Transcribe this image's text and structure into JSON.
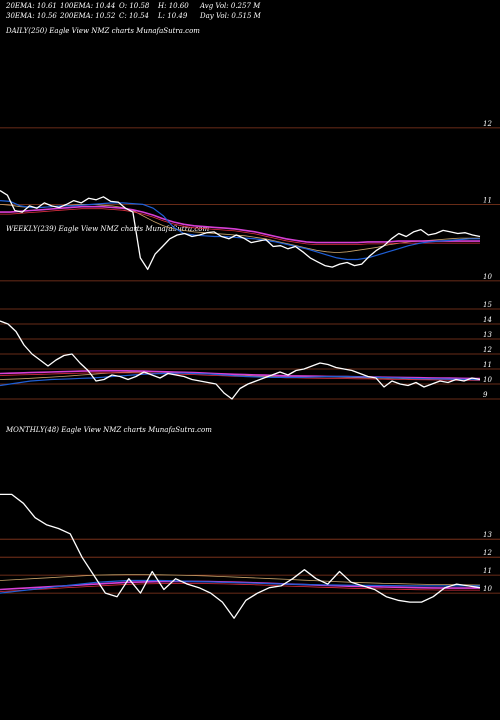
{
  "header": {
    "col1": [
      "20EMA: 10.61",
      "30EMA: 10.56"
    ],
    "col2": [
      "100EMA: 10.44",
      "200EMA: 10.52"
    ],
    "col3": [
      "O: 10.58",
      "C: 10.54"
    ],
    "col4": [
      "H: 10.60",
      "L: 10.49"
    ],
    "col5": [
      "Avg Vol: 0.257 M",
      "Day Vol: 0.515 M"
    ]
  },
  "colors": {
    "background": "#000000",
    "price": "#ffffff",
    "ema_short": "#1f5fd6",
    "ema_long": "#d63fd6",
    "ema_mid": "#c8a36a",
    "gridline": "#8b3a1f"
  },
  "chart_data": [
    {
      "type": "line",
      "label": "DAILY(250) Eagle View NMZ charts MunafaSutra.com",
      "y_ticks": [
        "12",
        "11",
        "10"
      ],
      "ylim": [
        9.75,
        12.3
      ],
      "x_count": 250,
      "series": [
        {
          "role": "price",
          "values": [
            11.18,
            11.12,
            10.92,
            10.9,
            10.98,
            10.95,
            11.02,
            10.98,
            10.96,
            11.0,
            11.05,
            11.02,
            11.08,
            11.06,
            11.1,
            11.04,
            11.03,
            10.95,
            10.9,
            10.3,
            10.15,
            10.35,
            10.45,
            10.55,
            10.6,
            10.62,
            10.58,
            10.6,
            10.63,
            10.64,
            10.58,
            10.55,
            10.6,
            10.56,
            10.5,
            10.52,
            10.54,
            10.45,
            10.46,
            10.42,
            10.45,
            10.38,
            10.3,
            10.25,
            10.2,
            10.18,
            10.22,
            10.24,
            10.2,
            10.22,
            10.32,
            10.4,
            10.46,
            10.55,
            10.62,
            10.58,
            10.64,
            10.67,
            10.6,
            10.62,
            10.66,
            10.64,
            10.62,
            10.63,
            10.6,
            10.58
          ]
        },
        {
          "role": "ema_short",
          "values": [
            11.05,
            11.04,
            10.98,
            10.96,
            10.96,
            10.97,
            10.98,
            10.98,
            10.99,
            11.0,
            11.01,
            11.02,
            11.02,
            11.01,
            11.0,
            10.95,
            10.85,
            10.7,
            10.62,
            10.6,
            10.59,
            10.58,
            10.58,
            10.57,
            10.56,
            10.55,
            10.53,
            10.51,
            10.48,
            10.45,
            10.42,
            10.38,
            10.34,
            10.3,
            10.28,
            10.28,
            10.3,
            10.34,
            10.38,
            10.42,
            10.46,
            10.49,
            10.51,
            10.52,
            10.53,
            10.54,
            10.55,
            10.55
          ]
        },
        {
          "role": "ema_mid",
          "values": [
            11.0,
            10.99,
            10.97,
            10.96,
            10.96,
            10.97,
            10.98,
            10.99,
            11.0,
            11.0,
            10.99,
            10.98,
            10.96,
            10.92,
            10.85,
            10.78,
            10.72,
            10.68,
            10.66,
            10.64,
            10.63,
            10.62,
            10.61,
            10.6,
            10.59,
            10.57,
            10.55,
            10.52,
            10.49,
            10.46,
            10.43,
            10.4,
            10.38,
            10.37,
            10.38,
            10.4,
            10.42,
            10.44,
            10.47,
            10.49,
            10.51,
            10.52,
            10.53,
            10.54,
            10.55,
            10.56,
            10.56,
            10.56
          ]
        },
        {
          "role": "ema_long",
          "values": [
            10.9,
            10.9,
            10.91,
            10.92,
            10.93,
            10.94,
            10.95,
            10.96,
            10.97,
            10.97,
            10.97,
            10.96,
            10.95,
            10.93,
            10.9,
            10.86,
            10.81,
            10.77,
            10.74,
            10.72,
            10.71,
            10.7,
            10.69,
            10.68,
            10.66,
            10.64,
            10.61,
            10.58,
            10.55,
            10.53,
            10.51,
            10.5,
            10.5,
            10.5,
            10.5,
            10.5,
            10.51,
            10.51,
            10.51,
            10.52,
            10.52,
            10.52,
            10.52,
            10.52,
            10.52,
            10.52,
            10.52,
            10.52
          ]
        }
      ]
    },
    {
      "type": "line",
      "label": "WEEKLY(239) Eagle View NMZ charts MunafaSutra.com",
      "y_ticks": [
        "15",
        "14",
        "13",
        "12",
        "11",
        "10",
        "9"
      ],
      "ylim": [
        8.6,
        15.6
      ],
      "x_count": 239,
      "series": [
        {
          "role": "price",
          "values": [
            14.2,
            14.0,
            13.5,
            12.6,
            12.0,
            11.6,
            11.2,
            11.6,
            11.9,
            12.0,
            11.4,
            10.9,
            10.2,
            10.3,
            10.6,
            10.5,
            10.3,
            10.5,
            10.8,
            10.6,
            10.4,
            10.7,
            10.6,
            10.5,
            10.3,
            10.2,
            10.1,
            10.0,
            9.4,
            9.0,
            9.7,
            10.0,
            10.2,
            10.4,
            10.6,
            10.8,
            10.6,
            10.9,
            11.0,
            11.2,
            11.4,
            11.3,
            11.1,
            11.0,
            10.9,
            10.7,
            10.5,
            10.4,
            9.8,
            10.2,
            10.0,
            9.9,
            10.1,
            9.8,
            10.0,
            10.2,
            10.1,
            10.3,
            10.2,
            10.4,
            10.3
          ]
        },
        {
          "role": "ema_short",
          "values": [
            9.9,
            10.0,
            10.1,
            10.2,
            10.25,
            10.3,
            10.32,
            10.35,
            10.38,
            10.4,
            10.45,
            10.5,
            10.55,
            10.6,
            10.65,
            10.68,
            10.7,
            10.72,
            10.72,
            10.7,
            10.68,
            10.65,
            10.6,
            10.55,
            10.5,
            10.47,
            10.45,
            10.44,
            10.44,
            10.44,
            10.45,
            10.47,
            10.49,
            10.5,
            10.5,
            10.48,
            10.46,
            10.44,
            10.42,
            10.4,
            10.38,
            10.36,
            10.35,
            10.34,
            10.33,
            10.32,
            10.3,
            10.28
          ]
        },
        {
          "role": "ema_mid",
          "values": [
            10.3,
            10.32,
            10.35,
            10.38,
            10.42,
            10.46,
            10.5,
            10.55,
            10.6,
            10.65,
            10.7,
            10.75,
            10.78,
            10.8,
            10.8,
            10.8,
            10.78,
            10.76,
            10.73,
            10.7,
            10.67,
            10.64,
            10.6,
            10.57,
            10.55,
            10.53,
            10.52,
            10.51,
            10.5,
            10.5,
            10.49,
            10.48,
            10.47,
            10.46,
            10.44,
            10.43,
            10.41,
            10.4,
            10.38,
            10.37,
            10.35,
            10.34,
            10.33,
            10.32,
            10.31,
            10.3,
            10.29,
            10.28
          ]
        },
        {
          "role": "ema_long",
          "values": [
            10.7,
            10.72,
            10.74,
            10.76,
            10.78,
            10.8,
            10.82,
            10.84,
            10.86,
            10.87,
            10.88,
            10.88,
            10.88,
            10.87,
            10.86,
            10.84,
            10.82,
            10.8,
            10.78,
            10.76,
            10.73,
            10.7,
            10.67,
            10.65,
            10.63,
            10.61,
            10.59,
            10.57,
            10.55,
            10.54,
            10.53,
            10.52,
            10.51,
            10.5,
            10.49,
            10.48,
            10.47,
            10.46,
            10.45,
            10.44,
            10.43,
            10.42,
            10.41,
            10.4,
            10.39,
            10.38,
            10.37,
            10.36
          ]
        }
      ]
    },
    {
      "type": "line",
      "label": "MONTHLY(48) Eagle View NMZ charts MunafaSutra.com",
      "y_ticks": [
        "13",
        "12",
        "11",
        "10"
      ],
      "ylim": [
        8.5,
        16.3
      ],
      "x_count": 48,
      "series": [
        {
          "role": "price",
          "values": [
            15.5,
            15.5,
            15.0,
            14.2,
            13.8,
            13.6,
            13.3,
            12.0,
            11.0,
            10.0,
            9.8,
            10.8,
            10.0,
            11.2,
            10.2,
            10.8,
            10.5,
            10.3,
            10.0,
            9.5,
            8.6,
            9.6,
            10.0,
            10.3,
            10.4,
            10.8,
            11.3,
            10.8,
            10.5,
            11.2,
            10.6,
            10.4,
            10.2,
            9.8,
            9.6,
            9.5,
            9.5,
            9.8,
            10.3,
            10.5,
            10.4,
            10.3
          ]
        },
        {
          "role": "ema_short",
          "values": [
            10.0,
            10.1,
            10.2,
            10.3,
            10.4,
            10.5,
            10.6,
            10.65,
            10.7,
            10.7,
            10.7,
            10.68,
            10.65,
            10.62,
            10.6,
            10.57,
            10.55,
            10.52,
            10.5,
            10.48,
            10.46,
            10.45,
            10.44,
            10.43,
            10.42,
            10.41,
            10.4,
            10.4,
            10.4,
            10.4,
            10.4
          ]
        },
        {
          "role": "ema_mid",
          "values": [
            10.7,
            10.75,
            10.8,
            10.85,
            10.9,
            10.95,
            11.0,
            11.02,
            11.03,
            11.03,
            11.02,
            11.0,
            10.98,
            10.95,
            10.92,
            10.88,
            10.84,
            10.8,
            10.76,
            10.72,
            10.68,
            10.64,
            10.6,
            10.57,
            10.54,
            10.52,
            10.5,
            10.48,
            10.47,
            10.46,
            10.45
          ]
        },
        {
          "role": "ema_long",
          "values": [
            10.2,
            10.25,
            10.3,
            10.35,
            10.4,
            10.45,
            10.5,
            10.55,
            10.6,
            10.62,
            10.64,
            10.65,
            10.65,
            10.64,
            10.62,
            10.6,
            10.57,
            10.54,
            10.5,
            10.47,
            10.44,
            10.41,
            10.38,
            10.36,
            10.34,
            10.32,
            10.3,
            10.29,
            10.28,
            10.28,
            10.28
          ]
        }
      ]
    }
  ]
}
